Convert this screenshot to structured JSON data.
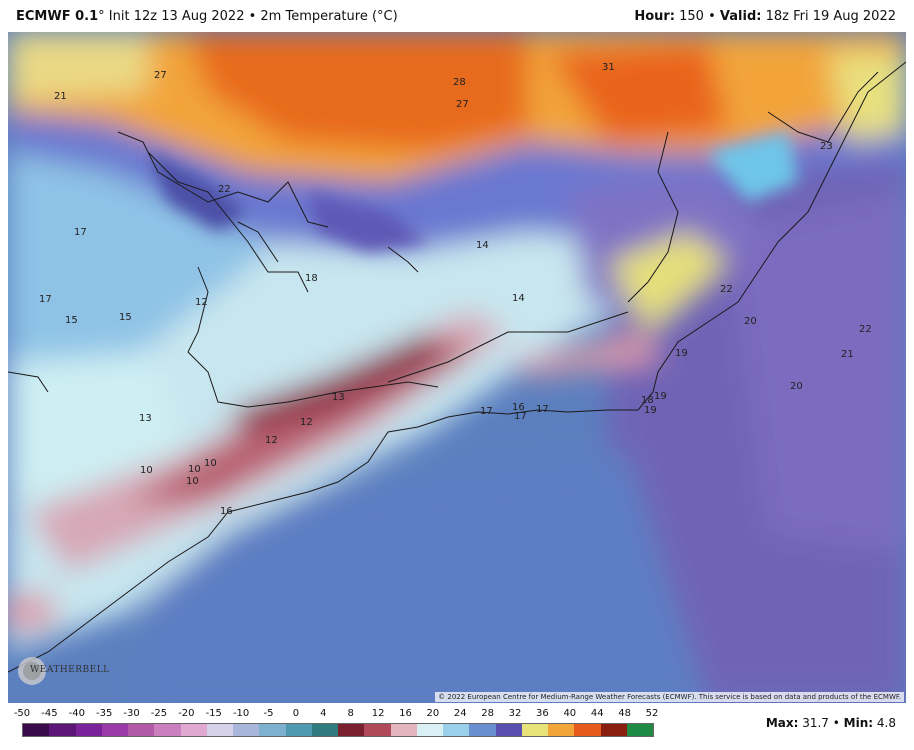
{
  "header": {
    "model": "ECMWF 0.1",
    "degree_sym": "°",
    "init_text": "Init 12z 13 Aug 2022 • 2m Temperature (°C)",
    "hour_label": "Hour:",
    "hour_value": "150 •",
    "valid_label": "Valid:",
    "valid_value": "18z Fri 19 Aug 2022"
  },
  "legend": {
    "ticks": [
      "-50",
      "-45",
      "-40",
      "-35",
      "-30",
      "-25",
      "-20",
      "-15",
      "-10",
      "-5",
      "0",
      "4",
      "8",
      "12",
      "16",
      "20",
      "24",
      "28",
      "32",
      "36",
      "40",
      "44",
      "48",
      "52"
    ],
    "colors": [
      "#3a0b4a",
      "#5b1677",
      "#7a2299",
      "#9a3aa9",
      "#b25aa8",
      "#cc7fbf",
      "#e0a8d2",
      "#d7d2ec",
      "#a9b6dc",
      "#7eb1cf",
      "#4f9ab0",
      "#2f7b7e",
      "#7a1f2e",
      "#b04a5a",
      "#e3b5bd",
      "#d9f1f4",
      "#9bd0ea",
      "#6a8fd0",
      "#5a4fb0",
      "#e8e27a",
      "#f2a63a",
      "#e65a1c",
      "#8a1e0e",
      "#1f8a44"
    ],
    "max_label": "Max:",
    "max_value": "31.7",
    "min_label": "Min:",
    "min_value": "4.8"
  },
  "copyright": "© 2022 European Centre for Medium-Range Weather Forecasts (ECMWF). This service is based on data and products of the ECMWF.",
  "logo_text": "WEATHERBELL",
  "map_labels": {
    "l1": "27",
    "l2": "21",
    "l3": "28",
    "l4": "27",
    "l5": "31",
    "l6": "23",
    "l7": "22",
    "l8": "17",
    "l9": "14",
    "l10": "18",
    "l11": "14",
    "l12": "12",
    "l13": "17",
    "l14": "15",
    "l15": "15",
    "l16": "22",
    "l17": "20",
    "l18": "22",
    "l19": "21",
    "l20": "19",
    "l21": "20",
    "l22": "13",
    "l23": "13",
    "l24": "12",
    "l25": "12",
    "l26": "17",
    "l27": "16",
    "l28": "17",
    "l29": "17",
    "l30": "18",
    "l31": "19",
    "l32": "19",
    "l33": "10",
    "l34": "10",
    "l35": "10",
    "l36": "10",
    "l37": "16"
  }
}
